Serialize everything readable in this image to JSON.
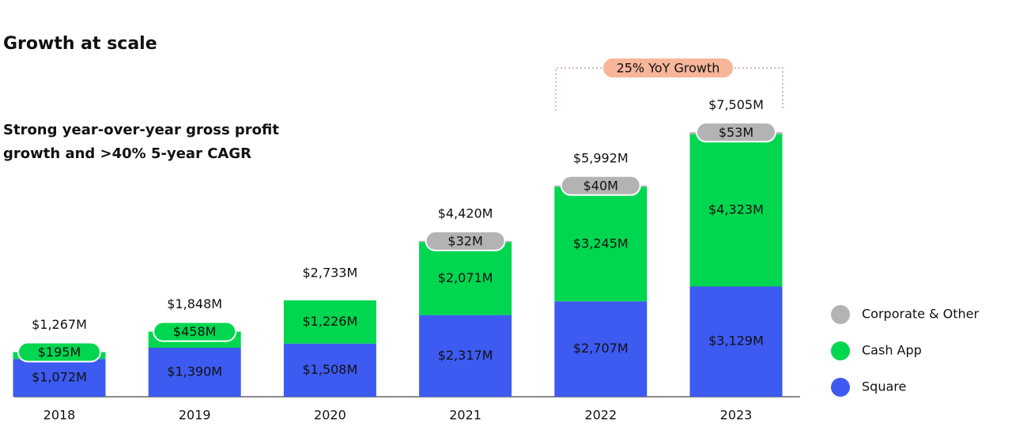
{
  "chart_data": {
    "type": "stacked-bar",
    "title": "Growth at scale",
    "subtitle": "Strong year-over-year gross profit growth and >40% 5-year CAGR",
    "annotation": "25% YoY Growth",
    "categories": [
      "2018",
      "2019",
      "2020",
      "2021",
      "2022",
      "2023"
    ],
    "series": [
      {
        "name": "Square",
        "color": "#3d5af1",
        "values": [
          1072,
          1390,
          1508,
          2317,
          2707,
          3129
        ],
        "value_labels": [
          "$1,072M",
          "$1,390M",
          "$1,508M",
          "$2,317M",
          "$2,707M",
          "$3,129M"
        ]
      },
      {
        "name": "Cash App",
        "color": "#00d64f",
        "values": [
          195,
          458,
          1226,
          2071,
          3245,
          4323
        ],
        "value_labels": [
          "$195M",
          "$458M",
          "$1,226M",
          "$2,071M",
          "$3,245M",
          "$4,323M"
        ]
      },
      {
        "name": "Corporate & Other",
        "color": "#b3b3b3",
        "values": [
          null,
          null,
          null,
          32,
          40,
          53
        ],
        "value_labels": [
          null,
          null,
          null,
          "$32M",
          "$40M",
          "$53M"
        ]
      }
    ],
    "totals": {
      "values": [
        1267,
        1848,
        2733,
        4420,
        5992,
        7505
      ],
      "value_labels": [
        "$1,267M",
        "$1,848M",
        "$2,733M",
        "$4,420M",
        "$5,992M",
        "$7,505M"
      ]
    }
  }
}
